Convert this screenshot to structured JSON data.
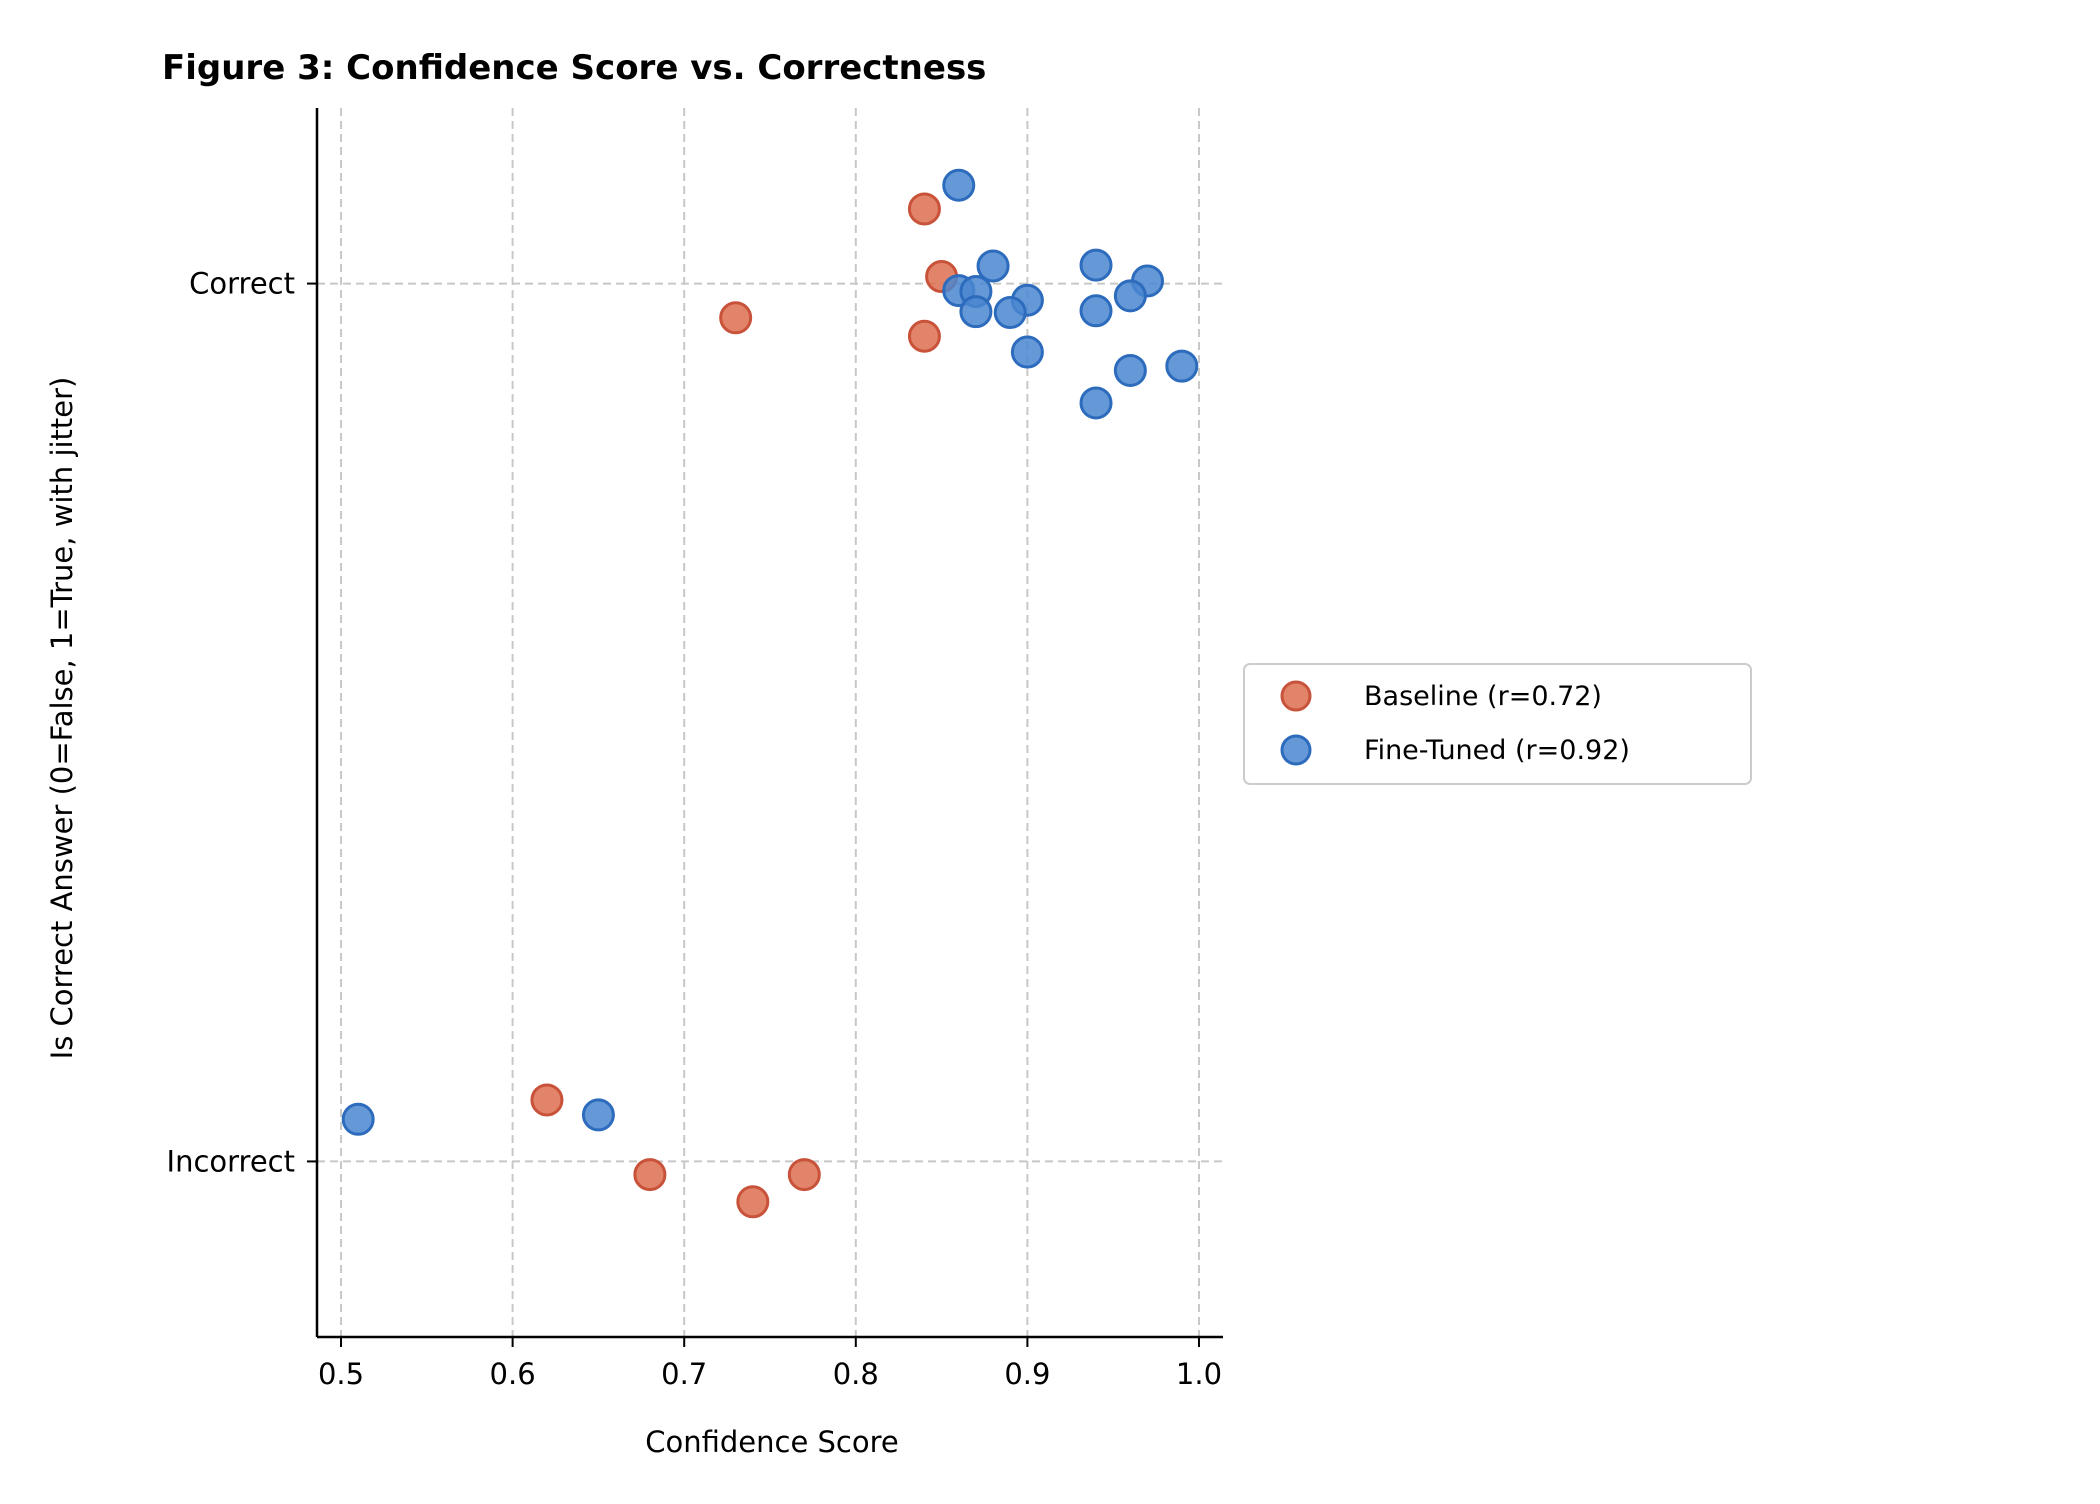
{
  "chart_data": {
    "type": "scatter",
    "title": "Figure 3: Confidence Score vs. Correctness",
    "xlabel": "Confidence Score",
    "ylabel": "Is Correct Answer (0=False, 1=True, with jitter)",
    "xlim": [
      0.486,
      1.014
    ],
    "ylim": [
      -0.2,
      1.2
    ],
    "x_ticks": [
      0.5,
      0.6,
      0.7,
      0.8,
      0.9,
      1.0
    ],
    "x_tick_labels": [
      "0.5",
      "0.6",
      "0.7",
      "0.8",
      "0.9",
      "1.0"
    ],
    "y_ticks": [
      0,
      1
    ],
    "y_tick_labels": [
      "Incorrect",
      "Correct"
    ],
    "grid": true,
    "legend_position": "right",
    "series": [
      {
        "name": "Baseline (r=0.72)",
        "color": "#dd6e4f",
        "edge_color": "#c9523a",
        "points": [
          {
            "x": 0.84,
            "y": 1.085
          },
          {
            "x": 0.85,
            "y": 1.008
          },
          {
            "x": 0.73,
            "y": 0.961
          },
          {
            "x": 0.84,
            "y": 0.94
          },
          {
            "x": 0.62,
            "y": 0.07
          },
          {
            "x": 0.68,
            "y": -0.015
          },
          {
            "x": 0.77,
            "y": -0.015
          },
          {
            "x": 0.74,
            "y": -0.046
          }
        ]
      },
      {
        "name": "Fine-Tuned (r=0.92)",
        "color": "#4a86d0",
        "edge_color": "#2d6bbd",
        "points": [
          {
            "x": 0.86,
            "y": 1.112
          },
          {
            "x": 0.88,
            "y": 1.02
          },
          {
            "x": 0.94,
            "y": 1.021
          },
          {
            "x": 0.97,
            "y": 1.003
          },
          {
            "x": 0.86,
            "y": 0.992
          },
          {
            "x": 0.87,
            "y": 0.991
          },
          {
            "x": 0.96,
            "y": 0.986
          },
          {
            "x": 0.9,
            "y": 0.981
          },
          {
            "x": 0.87,
            "y": 0.968
          },
          {
            "x": 0.89,
            "y": 0.967
          },
          {
            "x": 0.94,
            "y": 0.969
          },
          {
            "x": 0.9,
            "y": 0.922
          },
          {
            "x": 0.96,
            "y": 0.901
          },
          {
            "x": 0.99,
            "y": 0.906
          },
          {
            "x": 0.94,
            "y": 0.864
          },
          {
            "x": 0.51,
            "y": 0.048
          },
          {
            "x": 0.65,
            "y": 0.053
          }
        ]
      }
    ]
  }
}
